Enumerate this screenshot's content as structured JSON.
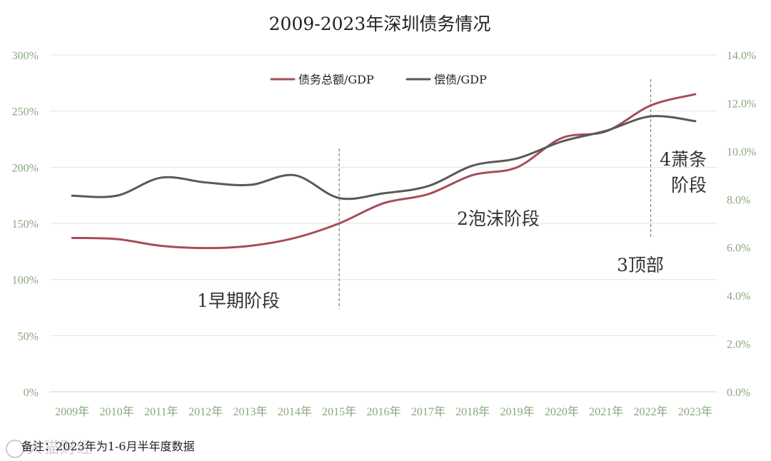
{
  "chart_data": {
    "type": "line",
    "title": "2009-2023年深圳债务情况",
    "categories": [
      "2009年",
      "2010年",
      "2011年",
      "2012年",
      "2013年",
      "2014年",
      "2015年",
      "2016年",
      "2017年",
      "2018年",
      "2019年",
      "2020年",
      "2021年",
      "2022年",
      "2023年"
    ],
    "y_left": {
      "ticks": [
        "0%",
        "50%",
        "100%",
        "150%",
        "200%",
        "250%",
        "300%"
      ],
      "range": [
        0,
        300
      ]
    },
    "y_right": {
      "ticks": [
        "0.0%",
        "2.0%",
        "4.0%",
        "6.0%",
        "8.0%",
        "10.0%",
        "12.0%",
        "14.0%"
      ],
      "range": [
        0,
        14
      ]
    },
    "series": [
      {
        "name": "债务总额/GDP",
        "axis": "left",
        "color": "#a84c5a",
        "values": [
          137,
          136,
          130,
          128,
          130,
          137,
          150,
          168,
          176,
          193,
          200,
          226,
          232,
          255,
          265
        ]
      },
      {
        "name": "偿债/GDP",
        "axis": "right",
        "color": "#595959",
        "values": [
          8.15,
          8.15,
          8.9,
          8.7,
          8.6,
          9.0,
          8.05,
          8.25,
          8.55,
          9.4,
          9.7,
          10.4,
          10.85,
          11.45,
          11.25
        ]
      }
    ],
    "legend_position": "top-center",
    "grid": true,
    "annotations": [
      {
        "text": "1早期阶段"
      },
      {
        "text": "2泡沫阶段"
      },
      {
        "text": "3顶部"
      },
      {
        "text": "4萧条阶段",
        "lines": [
          "4萧条",
          "阶段"
        ]
      }
    ],
    "dividers_after": [
      "2015年",
      "2022年"
    ]
  },
  "note": "备注：2023年为1-6月半年度数据",
  "watermark": "大猫财经"
}
